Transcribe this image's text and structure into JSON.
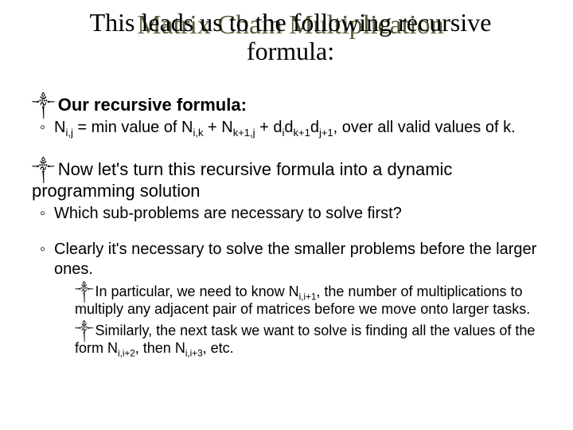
{
  "title_overlay_line1": "This leads us to the following recursive",
  "title_overlay_merged": "Matrix Chain Multiplication",
  "title_line2": "formula:",
  "bullets": {
    "main1": "Our recursive formula:",
    "sub1a_prefix": "N",
    "sub1a_sub1": "i,j",
    "sub1a_mid1": " = min value of N",
    "sub1a_sub2": "i,k",
    "sub1a_mid2": " + N",
    "sub1a_sub3": "k+1,j",
    "sub1a_mid3": " + d",
    "sub1a_sub4": "i",
    "sub1a_mid4": "d",
    "sub1a_sub5": "k+1",
    "sub1a_mid5": "d",
    "sub1a_sub6": "j+1",
    "sub1a_end": ", over all valid values of k.",
    "main2": "Now let's turn this recursive formula into a dynamic programming solution",
    "sub2a": "Which sub-problems are necessary to solve first?",
    "sub2b": "Clearly it's necessary to solve the smaller problems before the larger ones.",
    "sub3a_p1": "In particular, we need to know N",
    "sub3a_s1": "i,i+1",
    "sub3a_p2": ", the number of multiplications to multiply any adjacent pair of matrices before we move onto larger tasks.",
    "sub3b_p1": "Similarly, the next task we want to solve is finding all the values of the form N",
    "sub3b_s1": "i,i+2",
    "sub3b_p2": ", then N",
    "sub3b_s2": "i,i+3",
    "sub3b_p3": ", etc."
  },
  "symbols": {
    "bullet_symbol": "༒",
    "recursive_symbol": "༒"
  },
  "style": {
    "title_color_main": "#000000",
    "title_color_under": "#5a5a3a",
    "title_fontsize": 32,
    "body_fontsize": 20,
    "sub_fontsize": 18,
    "background": "#ffffff",
    "font_body": "Arial",
    "font_title": "Times New Roman"
  }
}
